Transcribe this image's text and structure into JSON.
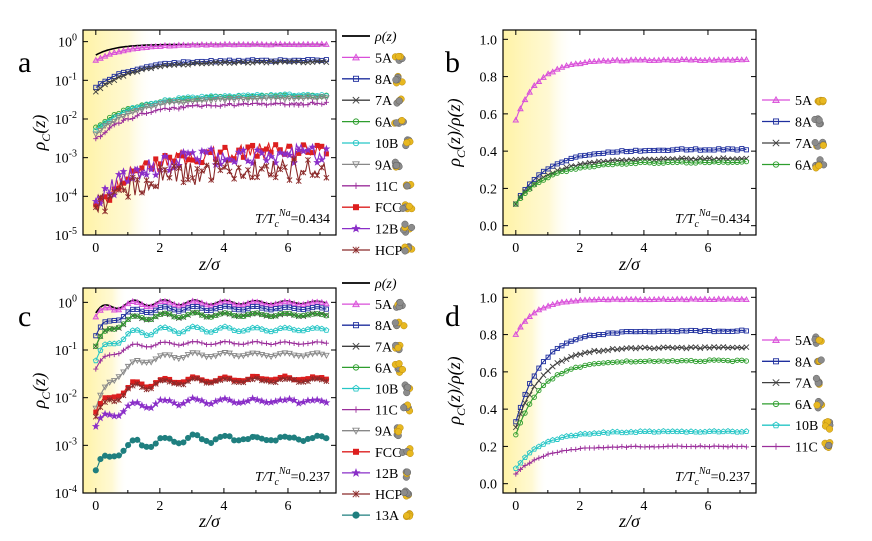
{
  "chart_data": [
    {
      "panel": "a",
      "type": "line",
      "yscale": "log",
      "xlim": [
        -0.4,
        7.5
      ],
      "ylim": [
        1e-05,
        2
      ],
      "xticks": [
        0,
        2,
        4,
        6
      ],
      "xtick_labels": [
        "0",
        "2",
        "4",
        "6"
      ],
      "yticks": [
        1e-05,
        0.0001,
        0.001,
        0.01,
        0.1,
        1
      ],
      "ytick_labels": [
        {
          "base": "10",
          "exp": "-5"
        },
        {
          "base": "10",
          "exp": "-4"
        },
        {
          "base": "10",
          "exp": "-3"
        },
        {
          "base": "10",
          "exp": "-2"
        },
        {
          "base": "10",
          "exp": "-1"
        },
        {
          "base": "10",
          "exp": "0"
        }
      ],
      "xlabel": "z/σ",
      "ylabel": {
        "main": "ρ",
        "sub": "C",
        "rest": "(z)"
      },
      "annotation": {
        "pre": "T/T",
        "sub": "c",
        "sup": "Na",
        "value": "=0.434"
      },
      "shade_to": 1.8,
      "series": [
        {
          "name": "ρ(z)",
          "color": "#000000",
          "marker": "none",
          "start": 0.45,
          "end": 0.85,
          "rise": 0.6,
          "noise": 0
        },
        {
          "name": "5A",
          "color": "#d94fd9",
          "marker": "triangle",
          "start": 0.33,
          "end": 0.85,
          "rise": 0.9,
          "noise": 0.01
        },
        {
          "name": "8A",
          "color": "#1f2f9e",
          "marker": "square",
          "start": 0.065,
          "end": 0.33,
          "rise": 1.1,
          "noise": 0.02
        },
        {
          "name": "7A",
          "color": "#404040",
          "marker": "x",
          "start": 0.05,
          "end": 0.3,
          "rise": 1.1,
          "noise": 0.02
        },
        {
          "name": "6A",
          "color": "#2e9e2e",
          "marker": "circle",
          "start": 0.006,
          "end": 0.04,
          "rise": 1.2,
          "noise": 0.03
        },
        {
          "name": "10B",
          "color": "#26c6c6",
          "marker": "circle",
          "start": 0.005,
          "end": 0.042,
          "rise": 1.2,
          "noise": 0.03
        },
        {
          "name": "9A",
          "color": "#888888",
          "marker": "tri-down",
          "start": 0.004,
          "end": 0.035,
          "rise": 1.2,
          "noise": 0.03
        },
        {
          "name": "11C",
          "color": "#9b2f9b",
          "marker": "plus",
          "start": 0.003,
          "end": 0.025,
          "rise": 1.2,
          "noise": 0.04
        },
        {
          "name": "FCC",
          "color": "#dd1f1f",
          "marker": "filled-square",
          "start": 5e-05,
          "end": 0.0015,
          "rise": 1.3,
          "noise": 0.22
        },
        {
          "name": "12B",
          "color": "#8a2fc8",
          "marker": "star",
          "start": 6e-05,
          "end": 0.0013,
          "rise": 1.3,
          "noise": 0.25
        },
        {
          "name": "HCP",
          "color": "#8b2a2a",
          "marker": "asterisk",
          "start": 4e-05,
          "end": 0.0005,
          "rise": 1.3,
          "noise": 0.3
        }
      ],
      "legend_extra": {
        "name": "ρ(z)"
      }
    },
    {
      "panel": "b",
      "type": "line",
      "yscale": "linear",
      "xlim": [
        -0.4,
        7.5
      ],
      "ylim": [
        -0.05,
        1.05
      ],
      "xticks": [
        0,
        2,
        4,
        6
      ],
      "xtick_labels": [
        "0",
        "2",
        "4",
        "6"
      ],
      "yticks": [
        0.0,
        0.2,
        0.4,
        0.6,
        0.8,
        1.0
      ],
      "ytick_labels": [
        "0.0",
        "0.2",
        "0.4",
        "0.6",
        "0.8",
        "1.0"
      ],
      "xlabel": "z/σ",
      "ylabel": {
        "main": "ρ",
        "sub": "C",
        "rest": "(z)/ρ(z)"
      },
      "annotation": {
        "pre": "T/T",
        "sub": "c",
        "sup": "Na",
        "value": "=0.434"
      },
      "shade_to": 1.8,
      "series": [
        {
          "name": "5A",
          "color": "#d94fd9",
          "marker": "triangle",
          "start": 0.57,
          "end": 0.89,
          "rise": 0.7,
          "noise": 0.003
        },
        {
          "name": "8A",
          "color": "#1f2f9e",
          "marker": "square",
          "start": 0.12,
          "end": 0.41,
          "rise": 1.0,
          "noise": 0.004
        },
        {
          "name": "7A",
          "color": "#404040",
          "marker": "x",
          "start": 0.12,
          "end": 0.36,
          "rise": 1.0,
          "noise": 0.004
        },
        {
          "name": "6A",
          "color": "#2e9e2e",
          "marker": "circle",
          "start": 0.12,
          "end": 0.34,
          "rise": 1.0,
          "noise": 0.004
        }
      ]
    },
    {
      "panel": "c",
      "type": "line",
      "yscale": "log",
      "xlim": [
        -0.4,
        7.5
      ],
      "ylim": [
        0.0001,
        2
      ],
      "xticks": [
        0,
        2,
        4,
        6
      ],
      "xtick_labels": [
        "0",
        "2",
        "4",
        "6"
      ],
      "yticks": [
        0.0001,
        0.001,
        0.01,
        0.1,
        1
      ],
      "ytick_labels": [
        {
          "base": "10",
          "exp": "-4"
        },
        {
          "base": "10",
          "exp": "-3"
        },
        {
          "base": "10",
          "exp": "-2"
        },
        {
          "base": "10",
          "exp": "-1"
        },
        {
          "base": "10",
          "exp": "0"
        }
      ],
      "xlabel": "z/σ",
      "ylabel": {
        "main": "ρ",
        "sub": "C",
        "rest": "(z)"
      },
      "annotation": {
        "pre": "T/T",
        "sub": "c",
        "sup": "Na",
        "value": "=0.237"
      },
      "shade_to": 1.0,
      "series": [
        {
          "name": "ρ(z)",
          "color": "#000000",
          "marker": "none",
          "start": 0.6,
          "end": 1.0,
          "rise": 0.5,
          "noise": 0,
          "wave": 0.08
        },
        {
          "name": "5A",
          "color": "#d94fd9",
          "marker": "triangle",
          "start": 0.5,
          "end": 0.95,
          "rise": 0.5,
          "noise": 0.01,
          "wave": 0.08
        },
        {
          "name": "8A",
          "color": "#1f2f9e",
          "marker": "square",
          "start": 0.2,
          "end": 0.75,
          "rise": 0.6,
          "noise": 0.01,
          "wave": 0.08
        },
        {
          "name": "7A",
          "color": "#404040",
          "marker": "x",
          "start": 0.12,
          "end": 0.55,
          "rise": 0.6,
          "noise": 0.01,
          "wave": 0.08
        },
        {
          "name": "6A",
          "color": "#2e9e2e",
          "marker": "circle",
          "start": 0.12,
          "end": 0.55,
          "rise": 0.6,
          "noise": 0.01,
          "wave": 0.08
        },
        {
          "name": "10B",
          "color": "#26c6c6",
          "marker": "pentagon",
          "start": 0.06,
          "end": 0.27,
          "rise": 0.6,
          "noise": 0.01,
          "wave": 0.1
        },
        {
          "name": "11C",
          "color": "#9b2f9b",
          "marker": "plus",
          "start": 0.04,
          "end": 0.14,
          "rise": 0.6,
          "noise": 0.01,
          "wave": 0.06
        },
        {
          "name": "9A",
          "color": "#888888",
          "marker": "tri-down",
          "start": 0.006,
          "end": 0.08,
          "rise": 0.7,
          "noise": 0.01,
          "wave": 0.08
        },
        {
          "name": "FCC",
          "color": "#dd1f1f",
          "marker": "filled-square",
          "start": 0.005,
          "end": 0.025,
          "rise": 0.8,
          "noise": 0.02,
          "wave": 0.1
        },
        {
          "name": "12B",
          "color": "#8a2fc8",
          "marker": "star",
          "start": 0.0025,
          "end": 0.0085,
          "rise": 0.8,
          "noise": 0.02,
          "wave": 0.1
        },
        {
          "name": "HCP",
          "color": "#8b2a2a",
          "marker": "asterisk",
          "start": 0.004,
          "end": 0.023,
          "rise": 0.8,
          "noise": 0.02,
          "wave": 0.1
        },
        {
          "name": "13A",
          "color": "#1f7f7f",
          "marker": "filled-circle",
          "start": 0.0003,
          "end": 0.0014,
          "rise": 0.8,
          "noise": 0.03,
          "wave": 0.12
        }
      ]
    },
    {
      "panel": "d",
      "type": "line",
      "yscale": "linear",
      "xlim": [
        -0.4,
        7.5
      ],
      "ylim": [
        -0.05,
        1.05
      ],
      "xticks": [
        0,
        2,
        4,
        6
      ],
      "xtick_labels": [
        "0",
        "2",
        "4",
        "6"
      ],
      "yticks": [
        0.0,
        0.2,
        0.4,
        0.6,
        0.8,
        1.0
      ],
      "ytick_labels": [
        "0.0",
        "0.2",
        "0.4",
        "0.6",
        "0.8",
        "1.0"
      ],
      "xlabel": "z/σ",
      "ylabel": {
        "main": "ρ",
        "sub": "C",
        "rest": "(z)/ρ(z)"
      },
      "annotation": {
        "pre": "T/T",
        "sub": "c",
        "sup": "Na",
        "value": "=0.237"
      },
      "shade_to": 1.0,
      "series": [
        {
          "name": "5A",
          "color": "#d94fd9",
          "marker": "triangle",
          "start": 0.8,
          "end": 0.99,
          "rise": 0.6,
          "noise": 0.002
        },
        {
          "name": "8A",
          "color": "#1f2f9e",
          "marker": "square",
          "start": 0.33,
          "end": 0.82,
          "rise": 0.8,
          "noise": 0.004
        },
        {
          "name": "7A",
          "color": "#404040",
          "marker": "x",
          "start": 0.3,
          "end": 0.73,
          "rise": 0.8,
          "noise": 0.004
        },
        {
          "name": "6A",
          "color": "#2e9e2e",
          "marker": "circle",
          "start": 0.26,
          "end": 0.66,
          "rise": 0.8,
          "noise": 0.004
        },
        {
          "name": "10B",
          "color": "#26c6c6",
          "marker": "pentagon",
          "start": 0.08,
          "end": 0.28,
          "rise": 0.8,
          "noise": 0.003
        },
        {
          "name": "11C",
          "color": "#9b2f9b",
          "marker": "plus",
          "start": 0.05,
          "end": 0.2,
          "rise": 0.8,
          "noise": 0.003
        }
      ]
    }
  ]
}
